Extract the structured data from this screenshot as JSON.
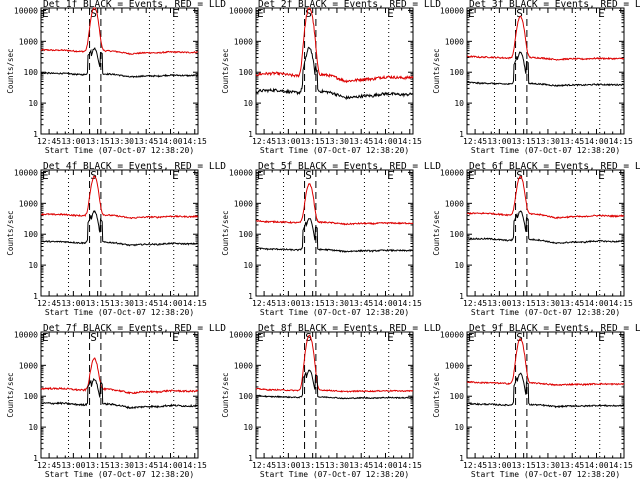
{
  "chart_data": {
    "type": "line",
    "ylabel": "Counts/sec",
    "xlabel": "Start Time (07-Oct-07 12:38:20)",
    "x_tick_labels": [
      "12:45",
      "13:00",
      "13:15",
      "13:30",
      "13:45",
      "14:00",
      "14:15"
    ],
    "x_range_minutes": [
      40,
      137
    ],
    "x_ticks_minutes": [
      45,
      60,
      75,
      90,
      105,
      120,
      135
    ],
    "y_scale": "log",
    "y_tick_labels": [
      "1",
      "10",
      "100",
      "1000",
      "10000"
    ],
    "y_ticks": [
      1,
      10,
      100,
      1000,
      10000
    ],
    "y_range": [
      1,
      12000
    ],
    "dotted_lines_minutes": [
      57,
      107,
      122
    ],
    "dashed_lines_minutes": [
      70,
      77
    ],
    "markers": {
      "left": "E",
      "middle": "S",
      "right": "E"
    },
    "series_colors": {
      "events": "#000000",
      "lld": "#dd0000"
    },
    "panels": [
      {
        "title": "Det 1f BLACK = Events, RED = LLD",
        "events_baseline": 80,
        "lld_baseline": 450,
        "lld_peak": 12000,
        "events_peak": 500,
        "noise": 0.05,
        "wave": 0.12
      },
      {
        "title": "Det 2f BLACK = Events, RED = LLD",
        "events_baseline": 20,
        "lld_baseline": 70,
        "lld_peak": 12000,
        "events_peak": 600,
        "noise": 0.1,
        "wave": 0.25
      },
      {
        "title": "Det 3f BLACK = Events, RED = LLD",
        "events_baseline": 40,
        "lld_baseline": 280,
        "lld_peak": 6000,
        "events_peak": 400,
        "noise": 0.05,
        "wave": 0.08
      },
      {
        "title": "Det 4f BLACK = Events, RED = LLD",
        "events_baseline": 50,
        "lld_baseline": 380,
        "lld_peak": 7000,
        "events_peak": 500,
        "noise": 0.05,
        "wave": 0.12
      },
      {
        "title": "Det 5f BLACK = Events, RED = LLD",
        "events_baseline": 30,
        "lld_baseline": 230,
        "lld_peak": 4000,
        "events_peak": 300,
        "noise": 0.05,
        "wave": 0.08
      },
      {
        "title": "Det 6f BLACK = Events, RED = LLD",
        "events_baseline": 60,
        "lld_baseline": 400,
        "lld_peak": 7000,
        "events_peak": 500,
        "noise": 0.05,
        "wave": 0.15
      },
      {
        "title": "Det 7f BLACK = Events, RED = LLD",
        "events_baseline": 50,
        "lld_baseline": 150,
        "lld_peak": 1500,
        "events_peak": 300,
        "noise": 0.06,
        "wave": 0.15
      },
      {
        "title": "Det 8f BLACK = Events, RED = LLD",
        "events_baseline": 90,
        "lld_baseline": 150,
        "lld_peak": 9000,
        "events_peak": 600,
        "noise": 0.04,
        "wave": 0.06
      },
      {
        "title": "Det 9f BLACK = Events, RED = LLD",
        "events_baseline": 50,
        "lld_baseline": 250,
        "lld_peak": 7000,
        "events_peak": 500,
        "noise": 0.05,
        "wave": 0.08
      }
    ]
  }
}
